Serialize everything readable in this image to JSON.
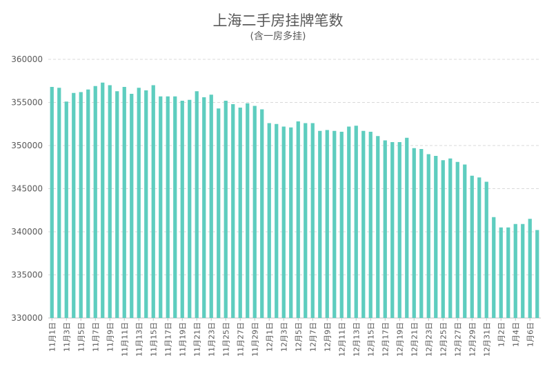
{
  "chart_data": {
    "type": "bar",
    "title": "上海二手房挂牌笔数",
    "subtitle": "(含一房多挂)",
    "xlabel": "",
    "ylabel": "",
    "ylim": [
      330000,
      360000
    ],
    "yticks": [
      330000,
      335000,
      340000,
      345000,
      350000,
      355000,
      360000
    ],
    "grid": true,
    "bar_color": "#5ecdbf",
    "categories": [
      "11月1日",
      "11月2日",
      "11月3日",
      "11月4日",
      "11月5日",
      "11月6日",
      "11月7日",
      "11月8日",
      "11月9日",
      "11月10日",
      "11月11日",
      "11月12日",
      "11月13日",
      "11月14日",
      "11月15日",
      "11月16日",
      "11月17日",
      "11月18日",
      "11月19日",
      "11月20日",
      "11月21日",
      "11月22日",
      "11月23日",
      "11月24日",
      "11月25日",
      "11月26日",
      "11月27日",
      "11月28日",
      "11月29日",
      "11月30日",
      "12月1日",
      "12月2日",
      "12月3日",
      "12月4日",
      "12月5日",
      "12月6日",
      "12月7日",
      "12月8日",
      "12月9日",
      "12月10日",
      "12月11日",
      "12月12日",
      "12月13日",
      "12月14日",
      "12月15日",
      "12月16日",
      "12月17日",
      "12月18日",
      "12月19日",
      "12月20日",
      "12月21日",
      "12月22日",
      "12月23日",
      "12月24日",
      "12月25日",
      "12月26日",
      "12月27日",
      "12月28日",
      "12月29日",
      "12月30日",
      "12月31日",
      "1月1日",
      "1月2日",
      "1月3日",
      "1月4日",
      "1月5日",
      "1月6日",
      "1月7日"
    ],
    "values": [
      356800,
      356700,
      355100,
      356100,
      356200,
      356500,
      356900,
      357300,
      357000,
      356300,
      356800,
      356000,
      356700,
      356400,
      357000,
      355700,
      355700,
      355700,
      355200,
      355300,
      356300,
      355600,
      355900,
      354300,
      355200,
      354800,
      354400,
      354900,
      354600,
      354200,
      352600,
      352500,
      352200,
      352100,
      352800,
      352600,
      352600,
      351700,
      351800,
      351700,
      351600,
      352200,
      352300,
      351700,
      351600,
      351100,
      350600,
      350400,
      350400,
      350900,
      349700,
      349600,
      349000,
      348800,
      348300,
      348500,
      348100,
      347800,
      346500,
      346300,
      345800,
      341700,
      340500,
      340500,
      340900,
      340900,
      341500,
      340200
    ],
    "x_tick_labels": [
      "11月1日",
      "11月3日",
      "11月5日",
      "11月7日",
      "11月9日",
      "11月11日",
      "11月13日",
      "11月15日",
      "11月17日",
      "11月19日",
      "11月21日",
      "11月23日",
      "11月25日",
      "11月27日",
      "11月29日",
      "12月1日",
      "12月3日",
      "12月5日",
      "12月7日",
      "12月9日",
      "12月11日",
      "12月13日",
      "12月15日",
      "12月17日",
      "12月19日",
      "12月21日",
      "12月23日",
      "12月25日",
      "12月27日",
      "12月29日",
      "12月31日",
      "1月2日",
      "1月4日",
      "1月6日"
    ]
  }
}
